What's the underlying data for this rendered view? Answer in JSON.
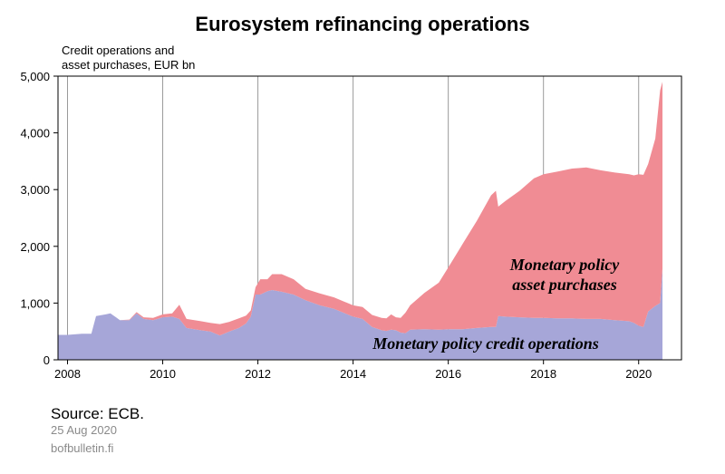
{
  "title": "Eurosystem refinancing operations",
  "units_line1": "Credit operations and",
  "units_line2": "asset purchases, EUR bn",
  "source": "Source: ECB.",
  "date": "25 Aug 2020",
  "site": "bofbulletin.fi",
  "colors": {
    "credit_operations": "#a6a6d8",
    "asset_purchases": "#f08c94",
    "grid": "#9a9a9a",
    "axis": "#000000",
    "annotation": "#000000"
  },
  "chart_data": {
    "type": "area",
    "stacked": true,
    "title": "Eurosystem refinancing operations",
    "ylabel": "Credit operations and asset purchases, EUR bn",
    "xlim": [
      2007.8,
      2020.9
    ],
    "ylim": [
      0,
      5000
    ],
    "yticks": [
      0,
      1000,
      2000,
      3000,
      4000,
      5000
    ],
    "ytick_labels": [
      "0",
      "1,000",
      "2,000",
      "3,000",
      "4,000",
      "5,000"
    ],
    "xticks": [
      2008,
      2010,
      2012,
      2014,
      2016,
      2018,
      2020
    ],
    "xtick_labels": [
      "2008",
      "2010",
      "2012",
      "2014",
      "2016",
      "2018",
      "2020"
    ],
    "grid": "vertical",
    "annotations": {
      "asset_purchases": [
        "Monetary policy",
        "asset purchases"
      ],
      "credit_operations": "Monetary policy credit operations"
    },
    "x": [
      2007.8,
      2008.0,
      2008.3,
      2008.5,
      2008.6,
      2008.8,
      2008.9,
      2009.1,
      2009.3,
      2009.45,
      2009.6,
      2009.8,
      2010.0,
      2010.2,
      2010.35,
      2010.5,
      2010.8,
      2011.0,
      2011.2,
      2011.4,
      2011.6,
      2011.75,
      2011.85,
      2011.95,
      2012.05,
      2012.2,
      2012.3,
      2012.5,
      2012.75,
      2013.0,
      2013.3,
      2013.6,
      2014.0,
      2014.2,
      2014.4,
      2014.6,
      2014.7,
      2014.8,
      2014.9,
      2015.0,
      2015.1,
      2015.2,
      2015.5,
      2015.8,
      2016.0,
      2016.3,
      2016.6,
      2016.9,
      2017.0,
      2017.05,
      2017.2,
      2017.5,
      2017.8,
      2018.0,
      2018.3,
      2018.6,
      2018.9,
      2019.2,
      2019.5,
      2019.8,
      2019.9,
      2020.0,
      2020.1,
      2020.2,
      2020.35,
      2020.45,
      2020.5
    ],
    "series": [
      {
        "name": "Monetary policy credit operations",
        "values": [
          440,
          440,
          460,
          460,
          770,
          800,
          820,
          700,
          700,
          820,
          720,
          700,
          750,
          760,
          720,
          560,
          520,
          500,
          430,
          500,
          560,
          640,
          760,
          1150,
          1150,
          1210,
          1230,
          1200,
          1150,
          1050,
          960,
          900,
          760,
          720,
          580,
          520,
          510,
          530,
          520,
          480,
          470,
          530,
          540,
          530,
          540,
          540,
          560,
          580,
          580,
          770,
          760,
          750,
          740,
          740,
          730,
          730,
          720,
          720,
          700,
          680,
          650,
          600,
          580,
          850,
          950,
          1000,
          1600
        ]
      },
      {
        "name": "Monetary policy asset purchases",
        "values": [
          0,
          0,
          0,
          0,
          0,
          0,
          0,
          0,
          10,
          20,
          30,
          40,
          50,
          60,
          250,
          160,
          160,
          150,
          200,
          170,
          170,
          140,
          110,
          130,
          270,
          210,
          280,
          310,
          270,
          200,
          210,
          200,
          200,
          210,
          210,
          220,
          220,
          270,
          230,
          260,
          360,
          430,
          640,
          830,
          1090,
          1500,
          1890,
          2320,
          2400,
          1930,
          2040,
          2230,
          2460,
          2530,
          2590,
          2640,
          2670,
          2620,
          2600,
          2590,
          2600,
          2670,
          2680,
          2600,
          2950,
          3750,
          3300
        ]
      }
    ]
  }
}
